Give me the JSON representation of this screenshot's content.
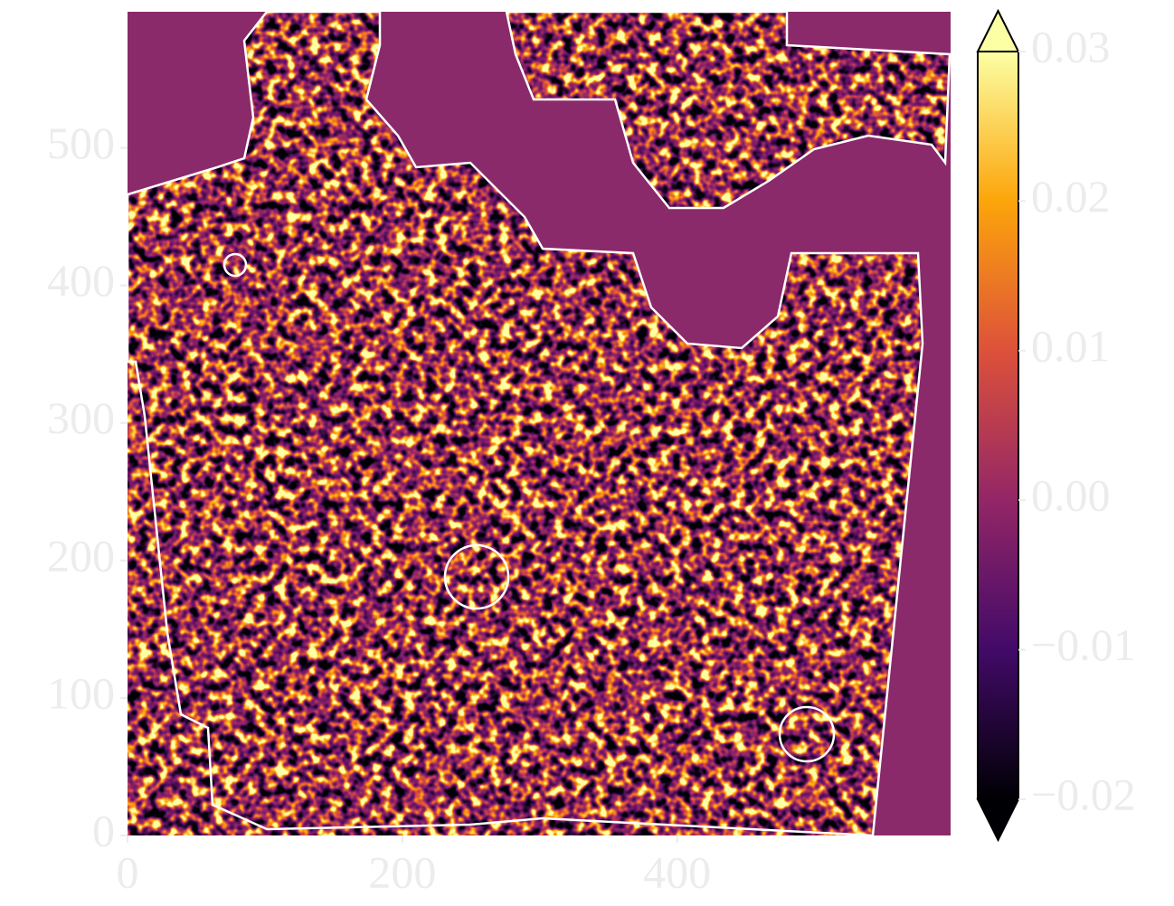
{
  "chart_data": {
    "type": "heatmap",
    "colormap": "inferno",
    "xlim": [
      0,
      599
    ],
    "ylim": [
      0,
      599
    ],
    "xticks": [
      0,
      200,
      400
    ],
    "yticks": [
      0,
      100,
      200,
      300,
      400,
      500
    ],
    "clim": [
      -0.02,
      0.03
    ],
    "cticks": [
      {
        "value": -0.02,
        "label": "−0.02"
      },
      {
        "value": -0.01,
        "label": "−0.01"
      },
      {
        "value": 0,
        "label": "0.00"
      },
      0.01,
      0.02,
      0.03
    ],
    "colorbar_extend": "both"
  }
}
